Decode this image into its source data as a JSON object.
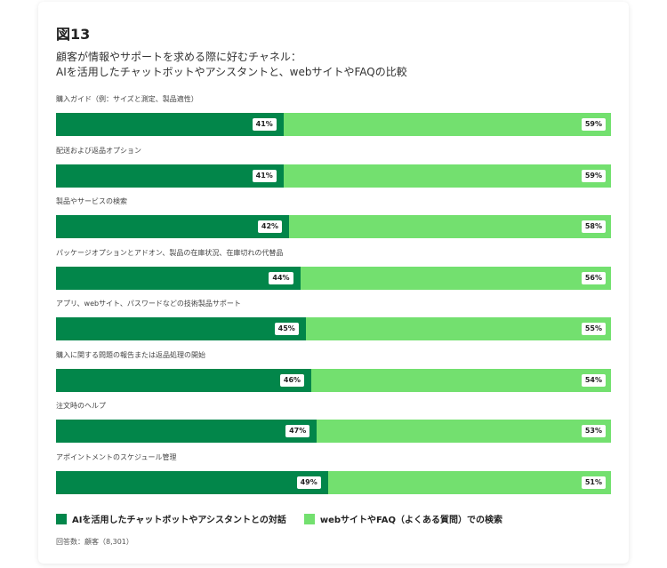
{
  "figure": {
    "label": "図13",
    "subtitle_lines": [
      "顧客が情報やサポートを求める際に好むチャネル：",
      "AIを活用したチャットボットやアシスタントと、webサイトやFAQの比較"
    ],
    "note": "回答数：顧客（8,301）"
  },
  "colors": {
    "series_a": "#02864a",
    "series_b": "#73e06f"
  },
  "chart_data": {
    "type": "bar",
    "orientation": "horizontal",
    "stacked": true,
    "unit": "%",
    "xlim": [
      0,
      100
    ],
    "legend_position": "bottom-left",
    "categories": [
      "購入ガイド（例：サイズと測定、製品適性）",
      "配送および返品オプション",
      "製品やサービスの検索",
      "パッケージオプションとアドオン、製品の在庫状況、在庫切れの代替品",
      "アプリ、webサイト、パスワードなどの技術製品サポート",
      "購入に関する問題の報告または返品処理の開始",
      "注文時のヘルプ",
      "アポイントメントのスケジュール管理"
    ],
    "series": [
      {
        "name": "AIを活用したチャットボットやアシスタントとの対話",
        "values": [
          41,
          41,
          42,
          44,
          45,
          46,
          47,
          49
        ]
      },
      {
        "name": "webサイトやFAQ（よくある質問）での検索",
        "values": [
          59,
          59,
          58,
          56,
          55,
          54,
          53,
          51
        ]
      }
    ]
  }
}
